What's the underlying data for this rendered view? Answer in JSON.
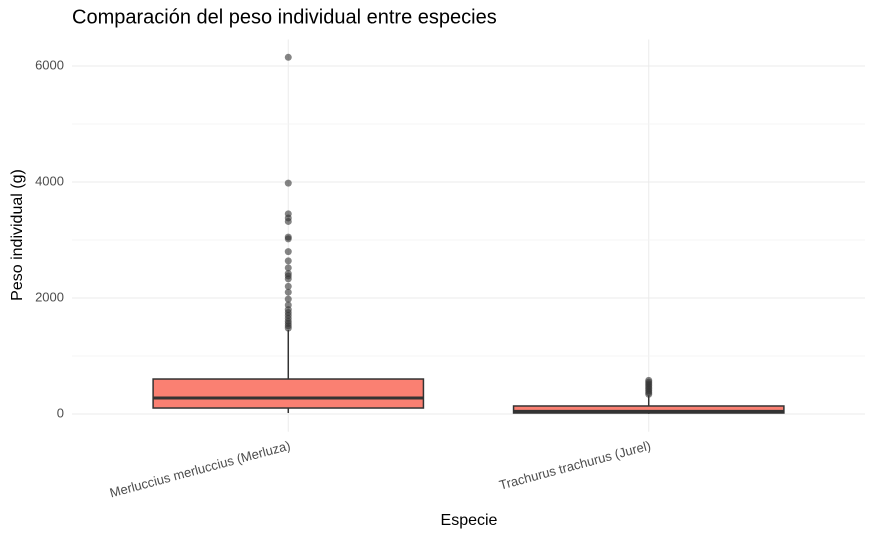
{
  "chart_data": {
    "type": "boxplot",
    "title": "Comparación del peso individual entre especies",
    "x_label": "Especie",
    "y_label": "Peso individual (g)",
    "categories": [
      "Merluccius merluccius (Merluza)",
      "Trachurus trachurus (Jurel)"
    ],
    "boxes": [
      {
        "min": 17,
        "q1": 103,
        "median": 276,
        "q3": 603,
        "max": 1448,
        "outliers": [
          6150,
          3980,
          3450,
          3380,
          3320,
          3050,
          3020,
          2800,
          2640,
          2520,
          2420,
          2380,
          2330,
          2200,
          2100,
          1980,
          1880,
          1800,
          1750,
          1700,
          1650,
          1600,
          1560,
          1520,
          1480
        ]
      },
      {
        "min": 3,
        "q1": 17,
        "median": 45,
        "q3": 138,
        "max": 320,
        "outliers": [
          340,
          370,
          400,
          430,
          460,
          490,
          520,
          550,
          580
        ]
      }
    ],
    "color": "#fa8072",
    "outlier_color": "#333333",
    "ylim": [
      -307,
      6457
    ],
    "yticks": [
      0,
      2000,
      4000,
      6000
    ],
    "grid": true
  }
}
